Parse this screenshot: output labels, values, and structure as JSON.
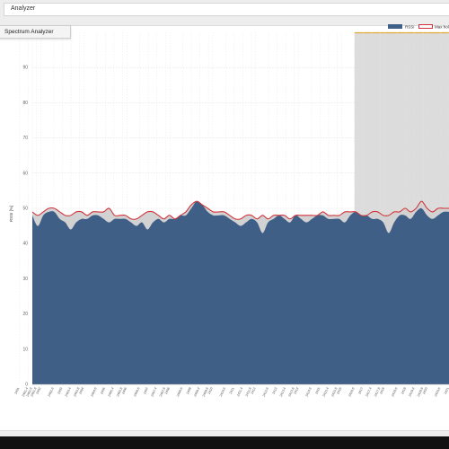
{
  "window": {
    "title": "Analyzer"
  },
  "tab": {
    "label": "Spectrum Analyzer"
  },
  "colors": {
    "rssi": "#3f5f87",
    "max_hold": "#d0343a",
    "highlight": "#dcdcdc",
    "highlight_marker": "#e0a82e",
    "max_fill": "#d2d2d2"
  },
  "chart_data": {
    "type": "area",
    "ylabel": "RSSI [%]",
    "ylim": [
      0,
      100
    ],
    "y_ticks": [
      0,
      10,
      20,
      30,
      40,
      50,
      60,
      70,
      80,
      90
    ],
    "legend": [
      "RSSI",
      "Max hold"
    ],
    "legend_placement": "top-right",
    "grid": true,
    "x_tick_labels": [
      "2401.6",
      "2401",
      "2401.4",
      "2401.8",
      "2402",
      "2402.6",
      "2403",
      "2403.4",
      "2403.8",
      "2404",
      "2404.6",
      "2405",
      "2405.4",
      "2405.8",
      "2406",
      "2406.6",
      "2407",
      "2407.4",
      "2407.8",
      "2408",
      "2408.6",
      "2409",
      "2409.4",
      "2409.8",
      "2410",
      "2410.6",
      "2411",
      "2411.4",
      "2411.8",
      "2412",
      "2412.6",
      "2413",
      "2413.4",
      "2413.8",
      "2414",
      "2414.6",
      "2415",
      "2415.4",
      "2415.8",
      "2416",
      "2416.6",
      "2417",
      "2417.4",
      "2417.8",
      "2418",
      "2418.6",
      "2419",
      "2419.4",
      "2419.8",
      "2420",
      "2420.6",
      "2421"
    ],
    "highlight_range": [
      2416.6,
      2421
    ],
    "series": [
      {
        "name": "RSSI",
        "values": [
          48,
          45,
          48,
          49,
          49,
          47,
          46,
          44,
          46,
          47,
          47,
          48,
          48,
          47,
          46,
          47,
          47,
          47,
          46,
          45,
          46,
          44,
          46,
          47,
          46,
          47,
          47,
          48,
          48,
          50,
          52,
          51,
          49,
          48,
          48,
          48,
          47,
          46,
          45,
          46,
          47,
          46,
          43,
          46,
          47,
          48,
          47,
          46,
          48,
          47,
          46,
          47,
          48,
          48,
          47,
          47,
          47,
          46,
          48,
          49,
          48,
          48,
          47,
          47,
          46,
          43,
          46,
          48,
          48,
          47,
          49,
          50,
          48,
          47,
          48,
          49,
          49
        ]
      },
      {
        "name": "Max hold",
        "values": [
          49,
          48,
          49,
          50,
          50,
          49,
          48,
          48,
          49,
          49,
          48,
          49,
          49,
          49,
          50,
          48,
          48,
          48,
          47,
          47,
          48,
          49,
          49,
          48,
          47,
          48,
          47,
          48,
          49,
          51,
          52,
          51,
          50,
          49,
          49,
          49,
          48,
          47,
          47,
          48,
          48,
          47,
          48,
          47,
          48,
          48,
          48,
          47,
          48,
          48,
          48,
          48,
          48,
          49,
          48,
          48,
          48,
          49,
          49,
          49,
          48,
          48,
          49,
          49,
          48,
          48,
          49,
          49,
          50,
          49,
          50,
          52,
          50,
          49,
          50,
          50,
          50
        ]
      }
    ]
  }
}
